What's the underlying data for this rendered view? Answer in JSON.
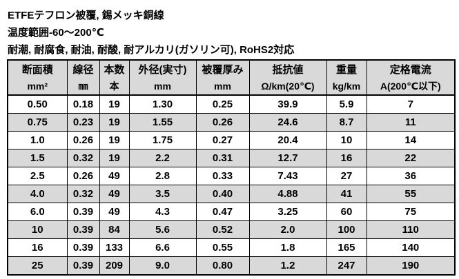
{
  "intro": {
    "lines": [
      "ETFEテフロン被覆, 錫メッキ銅線",
      "温度範囲-60～200℃",
      "耐潮, 耐腐食, 耐油, 耐酸, 耐アルカリ(ガソリン可), RoHS2対応"
    ]
  },
  "table": {
    "columns": [
      {
        "name": "断面積",
        "unit": "mm²"
      },
      {
        "name": "線径",
        "unit": "㎜"
      },
      {
        "name": "本数",
        "unit": "本"
      },
      {
        "name": "外径(実寸)",
        "unit": "mm"
      },
      {
        "name": "被覆厚み",
        "unit": "mm"
      },
      {
        "name": "抵抗値",
        "unit": "Ω/km(20℃)"
      },
      {
        "name": "重量",
        "unit": "kg/km"
      },
      {
        "name": "定格電流",
        "unit": "A(200℃以下)"
      }
    ],
    "rows": [
      [
        "0.50",
        "0.18",
        "19",
        "1.30",
        "0.25",
        "39.9",
        "5.9",
        "7"
      ],
      [
        "0.75",
        "0.23",
        "19",
        "1.55",
        "0.26",
        "24.6",
        "8.7",
        "11"
      ],
      [
        "1.0",
        "0.26",
        "19",
        "1.75",
        "0.27",
        "20.4",
        "10",
        "14"
      ],
      [
        "1.5",
        "0.32",
        "19",
        "2.2",
        "0.31",
        "12.7",
        "16",
        "22"
      ],
      [
        "2.5",
        "0.26",
        "49",
        "2.8",
        "0.33",
        "7.43",
        "27",
        "36"
      ],
      [
        "4.0",
        "0.32",
        "49",
        "3.5",
        "0.40",
        "4.88",
        "41",
        "55"
      ],
      [
        "6.0",
        "0.39",
        "49",
        "4.3",
        "0.47",
        "3.25",
        "60",
        "75"
      ],
      [
        "10",
        "0.39",
        "84",
        "5.6",
        "0.52",
        "2.0",
        "100",
        "110"
      ],
      [
        "16",
        "0.39",
        "133",
        "6.6",
        "0.55",
        "1.8",
        "165",
        "140"
      ],
      [
        "25",
        "0.39",
        "209",
        "9.0",
        "0.80",
        "1.2",
        "247",
        "190"
      ]
    ],
    "colors": {
      "header_bg": "#d9d9d9",
      "alt_row_bg": "#d9d9d9",
      "row_bg": "#ffffff",
      "border": "#000000",
      "text": "#000000"
    }
  }
}
